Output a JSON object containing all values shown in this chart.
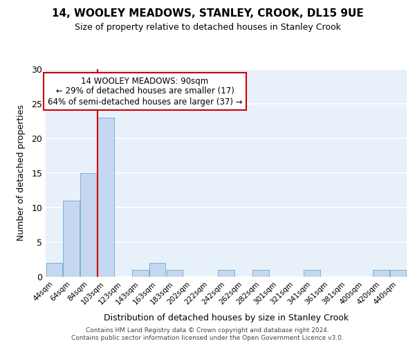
{
  "title1": "14, WOOLEY MEADOWS, STANLEY, CROOK, DL15 9UE",
  "title2": "Size of property relative to detached houses in Stanley Crook",
  "xlabel": "Distribution of detached houses by size in Stanley Crook",
  "ylabel": "Number of detached properties",
  "bar_labels": [
    "44sqm",
    "64sqm",
    "84sqm",
    "103sqm",
    "123sqm",
    "143sqm",
    "163sqm",
    "183sqm",
    "202sqm",
    "222sqm",
    "242sqm",
    "262sqm",
    "282sqm",
    "301sqm",
    "321sqm",
    "341sqm",
    "361sqm",
    "381sqm",
    "400sqm",
    "420sqm",
    "440sqm"
  ],
  "bar_values": [
    2,
    11,
    15,
    23,
    0,
    1,
    2,
    1,
    0,
    0,
    1,
    0,
    1,
    0,
    0,
    1,
    0,
    0,
    0,
    1,
    1
  ],
  "bar_color": "#c5d8f0",
  "bar_edge_color": "#7aafd4",
  "bg_color": "#e8f0fa",
  "grid_color": "#ffffff",
  "red_line_x": 2.5,
  "annotation_text": "14 WOOLEY MEADOWS: 90sqm\n← 29% of detached houses are smaller (17)\n64% of semi-detached houses are larger (37) →",
  "annotation_box_color": "#ffffff",
  "annotation_box_edge": "#cc0000",
  "ylim": [
    0,
    30
  ],
  "yticks": [
    0,
    5,
    10,
    15,
    20,
    25,
    30
  ],
  "footer1": "Contains HM Land Registry data © Crown copyright and database right 2024.",
  "footer2": "Contains public sector information licensed under the Open Government Licence v3.0."
}
